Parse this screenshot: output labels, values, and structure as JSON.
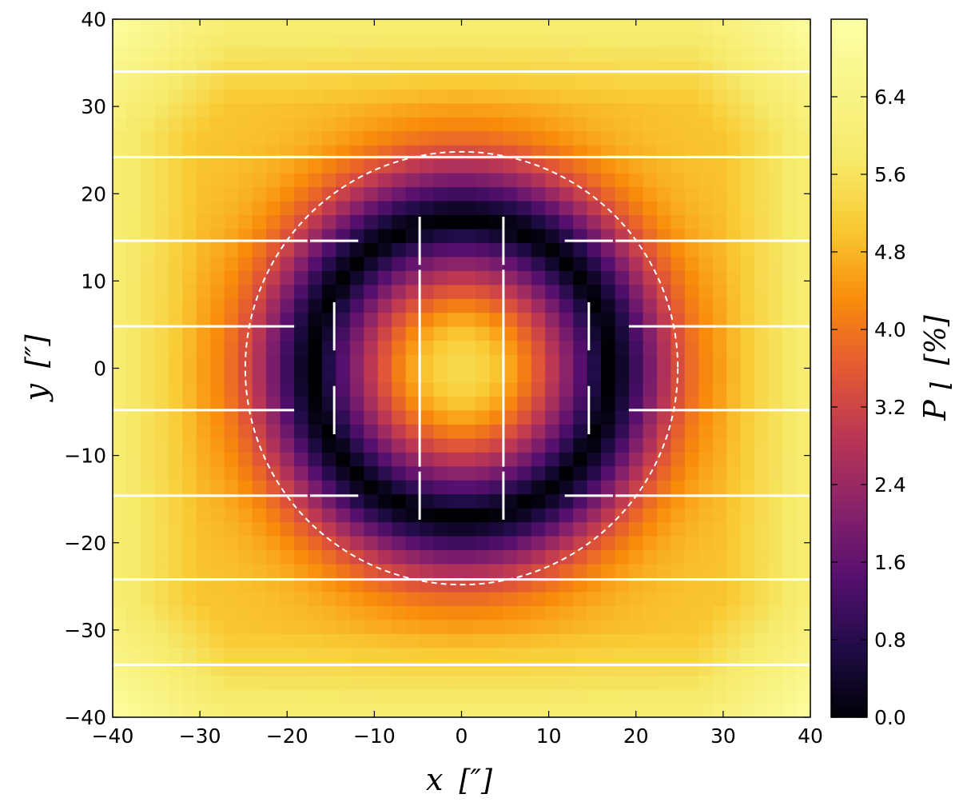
{
  "chart_data": {
    "type": "heatmap",
    "title": "",
    "xlabel": "x",
    "xlabel_unit": "[″]",
    "ylabel": "y",
    "ylabel_unit": "[″]",
    "xlim": [
      -40,
      40
    ],
    "ylim": [
      -40,
      40
    ],
    "xticks": [
      -40,
      -30,
      -20,
      -10,
      0,
      10,
      20,
      30,
      40
    ],
    "yticks": [
      -40,
      -30,
      -20,
      -10,
      0,
      10,
      20,
      30,
      40
    ],
    "xtick_labels": [
      "−40",
      "−30",
      "−20",
      "−10",
      "0",
      "10",
      "20",
      "30",
      "40"
    ],
    "ytick_labels": [
      "−40",
      "−30",
      "−20",
      "−10",
      "0",
      "10",
      "20",
      "30",
      "40"
    ],
    "colorbar": {
      "label": "P",
      "label_subscript": "l",
      "label_unit": "[%]",
      "range": [
        0.0,
        7.2
      ],
      "ticks": [
        0.0,
        0.8,
        1.6,
        2.4,
        3.2,
        4.0,
        4.8,
        5.6,
        6.4
      ],
      "tick_labels": [
        "0.0",
        "0.8",
        "1.6",
        "2.4",
        "3.2",
        "4.0",
        "4.8",
        "5.6",
        "6.4"
      ],
      "colormap": "inferno"
    },
    "field_model": {
      "grid_cells": 50,
      "center_value": 5.4,
      "center_radius_scale": 17,
      "zero_ring_radius": 16.8,
      "outer_plateau": 5.0,
      "corner_max": 7.0
    },
    "vectors": {
      "positions": [
        -34,
        -24.2,
        -14.6,
        -4.8,
        4.8,
        14.6,
        24.2,
        34
      ],
      "length_per_percent": 0.66,
      "inner_ring_radius": 16.8,
      "orientation_outside": "horizontal",
      "orientation_inside": "vertical",
      "color": "#ffffff"
    },
    "contour": {
      "style": "dashed",
      "color": "#ffffff",
      "radius": 24.8
    }
  }
}
